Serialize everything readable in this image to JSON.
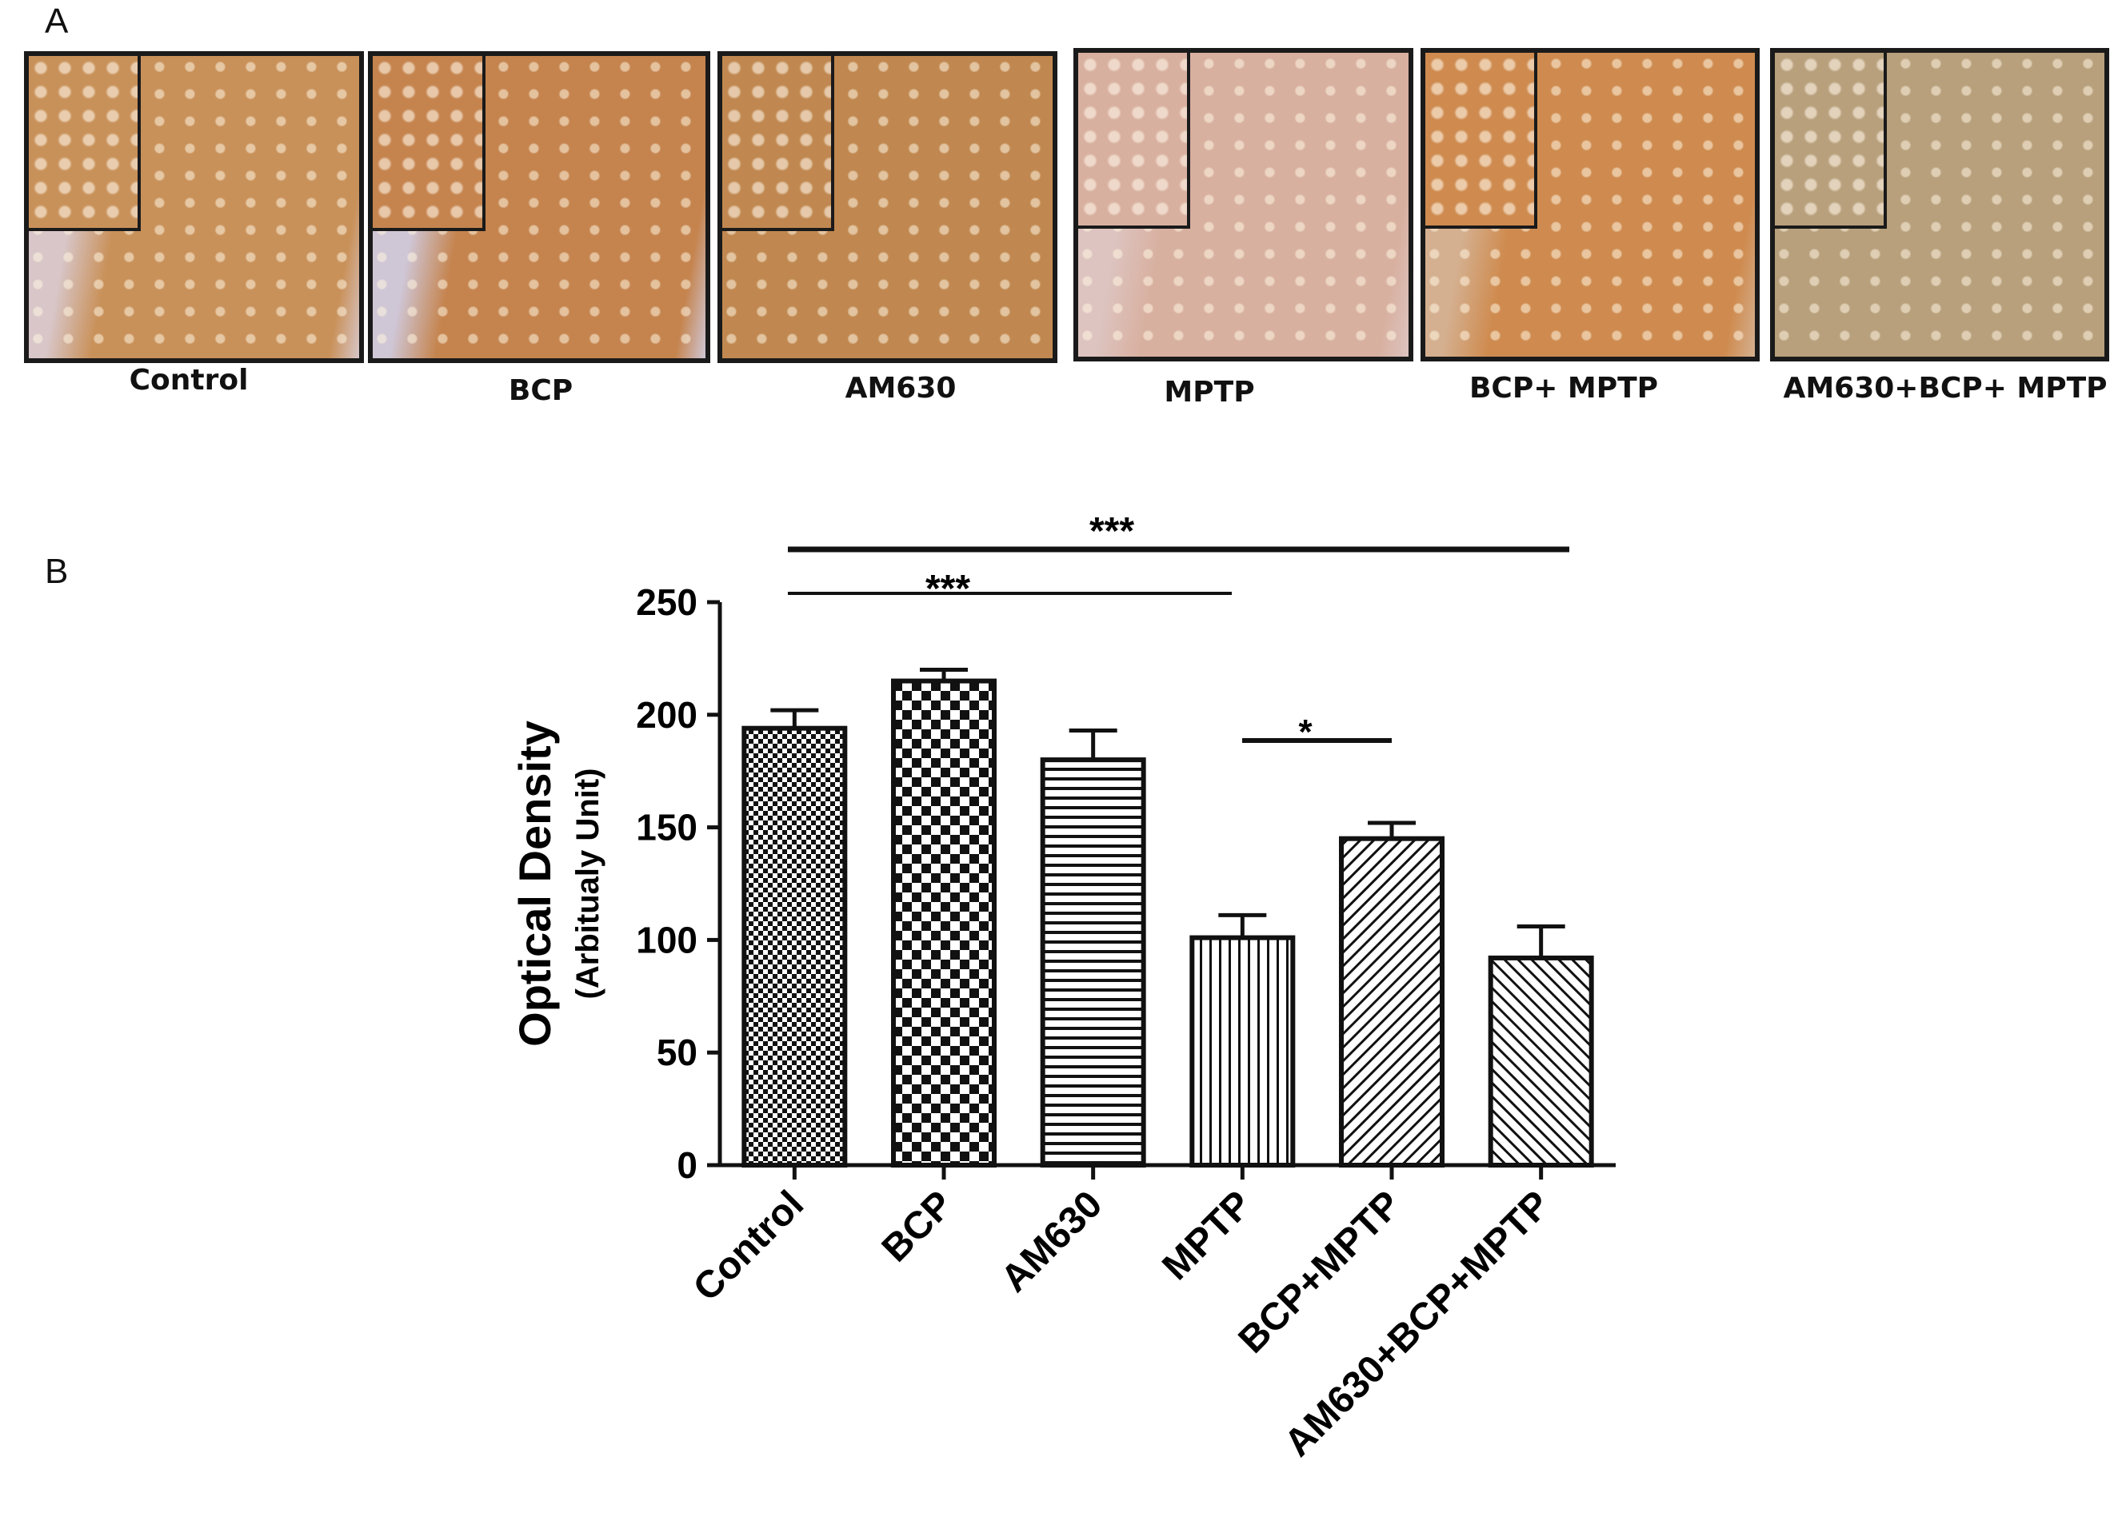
{
  "panel_a": {
    "letter": "A",
    "images": [
      {
        "label": "Control",
        "tone": "#c9915a",
        "bg": "#d8c6c8"
      },
      {
        "label": "BCP",
        "tone": "#c5844e",
        "bg": "#cfc6d6"
      },
      {
        "label": "AM630",
        "tone": "#c08850",
        "bg": "#c08850"
      },
      {
        "label": "MPTP",
        "tone": "#d8b0a0",
        "bg": "#ddc4c0"
      },
      {
        "label": "BCP+ MPTP",
        "tone": "#cf8b4f",
        "bg": "#d4b090"
      },
      {
        "label": "AM630+BCP+ MPTP",
        "tone": "#b8a07c",
        "bg": "#b8a07c"
      }
    ]
  },
  "panel_b": {
    "letter": "B"
  },
  "chart_data": {
    "type": "bar",
    "ylabel": "Optical Density",
    "ylabel_sub": "(Arbitualy Unit)",
    "ylim": [
      0,
      250
    ],
    "yticks": [
      "0",
      "50",
      "100",
      "150",
      "200",
      "250"
    ],
    "categories": [
      "Control",
      "BCP",
      "AM630",
      "MPTP",
      "BCP+MPTP",
      "AM630+BCP+MPTP"
    ],
    "values": [
      194,
      215,
      180,
      101,
      145,
      92
    ],
    "errors": [
      8,
      5,
      13,
      10,
      7,
      14
    ],
    "patterns": [
      "fine-checker",
      "coarse-checker",
      "horizontal-lines",
      "vertical-lines",
      "diagonal-left",
      "diagonal-right"
    ],
    "significance": [
      {
        "from": "Control",
        "to": "AM630+BCP+MPTP",
        "label": "***"
      },
      {
        "from": "Control",
        "to": "MPTP",
        "label": "***"
      },
      {
        "from": "MPTP",
        "to": "BCP+MPTP",
        "label": "*"
      }
    ],
    "grid": false,
    "legend": "none"
  }
}
